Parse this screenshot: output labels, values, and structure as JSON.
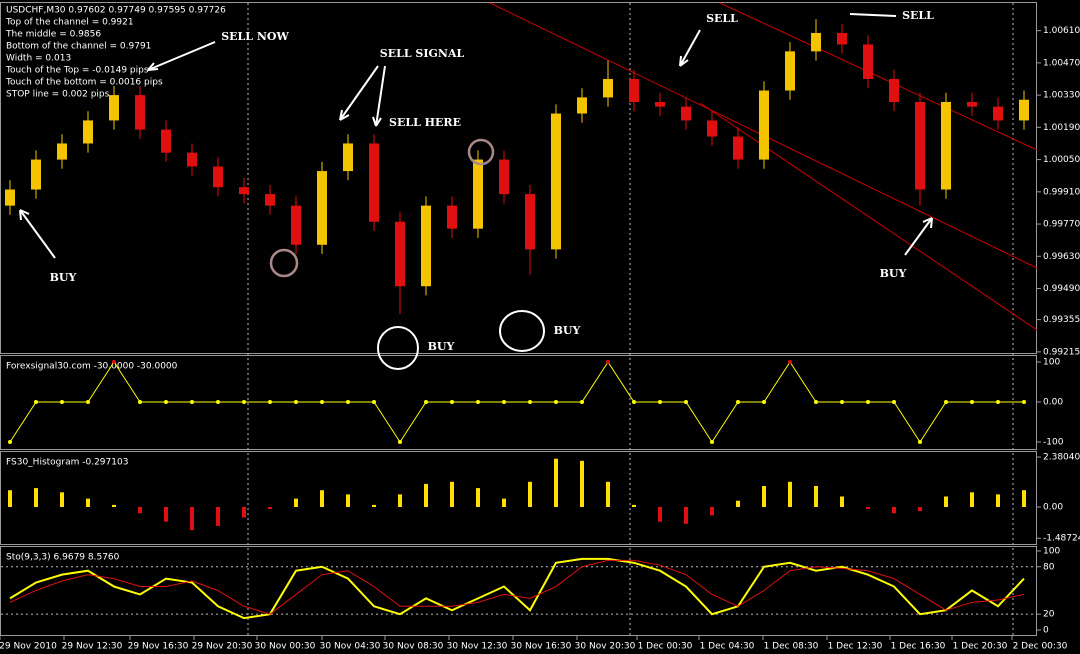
{
  "chart_data": [
    {
      "type": "candlestick",
      "info": [
        "USDCHF,M30  0.97602 0.97749 0.97595 0.97726",
        "Top of the channel = 0.9921",
        "The middle = 0.9856",
        "Bottom of the channel = 0.9791",
        "Width = 0.013",
        "Touch of the Top = -0.0149 pips",
        "Touch of the bottom = 0.0016 pips",
        "STOP line  = 0.002 pips"
      ],
      "annotations": [
        "SELL NOW",
        "SELL SIGNAL",
        "SELL HERE",
        "BUY",
        "BUY",
        "BUY",
        "SELL",
        "SELL",
        "BUY"
      ],
      "open": [
        0.9985,
        0.9992,
        1.0005,
        1.0012,
        1.0022,
        1.0033,
        1.0018,
        1.0008,
        1.0002,
        0.9993,
        0.999,
        0.9985,
        0.9968,
        1.0,
        1.0012,
        0.9978,
        0.995,
        0.9985,
        0.9975,
        1.0005,
        0.999,
        0.9966,
        1.0025,
        1.0032,
        1.004,
        1.003,
        1.0028,
        1.0022,
        1.0015,
        1.0005,
        1.0035,
        1.0052,
        1.006,
        1.0055,
        1.004,
        1.003,
        0.9992,
        1.003,
        1.0028,
        1.0022
      ],
      "high": [
        0.9996,
        1.0009,
        1.0016,
        1.0026,
        1.0037,
        1.0037,
        1.0022,
        1.0012,
        1.0006,
        0.9997,
        0.9994,
        0.9989,
        1.0004,
        1.0016,
        1.0016,
        0.9982,
        0.9989,
        0.9989,
        1.0009,
        1.0009,
        0.9994,
        1.0029,
        1.0036,
        1.0048,
        1.0044,
        1.0034,
        1.0032,
        1.0026,
        1.0019,
        1.0039,
        1.0056,
        1.0066,
        1.0064,
        1.0059,
        1.0044,
        1.0034,
        1.0034,
        1.0034,
        1.0032,
        1.0035
      ],
      "low": [
        0.9981,
        0.9988,
        1.0001,
        1.0008,
        1.0018,
        1.0014,
        1.0004,
        0.9998,
        0.9989,
        0.9986,
        0.9981,
        0.9964,
        0.9964,
        0.9996,
        0.9974,
        0.9938,
        0.9946,
        0.9971,
        0.9971,
        0.9986,
        0.9955,
        0.9962,
        1.0021,
        1.0028,
        1.0026,
        1.0024,
        1.0018,
        1.0011,
        1.0001,
        1.0001,
        1.0031,
        1.0048,
        1.0051,
        1.0036,
        1.0026,
        0.9985,
        0.9988,
        1.0024,
        1.0018,
        1.0018
      ],
      "close": [
        0.9992,
        1.0005,
        1.0012,
        1.0022,
        1.0033,
        1.0018,
        1.0008,
        1.0002,
        0.9993,
        0.999,
        0.9985,
        0.9968,
        1.0,
        1.0012,
        0.9978,
        0.995,
        0.9985,
        0.9975,
        1.0005,
        0.999,
        0.9966,
        1.0025,
        1.0032,
        1.004,
        1.003,
        1.0028,
        1.0022,
        1.0015,
        1.0005,
        1.0035,
        1.0052,
        1.006,
        1.0055,
        1.004,
        1.003,
        0.9992,
        1.003,
        1.0028,
        1.0022,
        1.0031
      ],
      "up_color": "#f5c400",
      "down_color": "#e01010",
      "ylim": [
        0.9921,
        1.0073
      ],
      "yticks": [
        {
          "value": 1.0061,
          "label": "1.00610"
        },
        {
          "value": 1.0047,
          "label": "1.00470"
        },
        {
          "value": 1.0033,
          "label": "1.00330"
        },
        {
          "value": 1.0019,
          "label": "1.00190"
        },
        {
          "value": 1.0005,
          "label": "1.00050"
        },
        {
          "value": 0.9991,
          "label": "0.99910"
        },
        {
          "value": 0.9977,
          "label": "0.99770"
        },
        {
          "value": 0.9963,
          "label": "0.99630"
        },
        {
          "value": 0.9949,
          "label": "0.99490"
        },
        0.99355,
        0.99215
      ],
      "time_axis": [
        "29 Nov 2010",
        "29 Nov 12:30",
        "29 Nov 16:30",
        "29 Nov 20:30",
        "30 Nov 00:30",
        "30 Nov 04:30",
        "30 Nov 08:30",
        "30 Nov 12:30",
        "30 Nov 16:30",
        "30 Nov 20:30",
        "1 Dec 00:30",
        "1 Dec 04:30",
        "1 Dec 08:30",
        "1 Dec 12:30",
        "1 Dec 16:30",
        "1 Dec 20:30",
        "2 Dec 00:30"
      ]
    },
    {
      "type": "line",
      "title": "Forexsignal30.com -30.0000 -30.0000",
      "series": [
        {
          "color": "#ffff00",
          "values": [
            -100,
            0,
            0,
            0,
            100,
            0,
            0,
            0,
            0,
            0,
            0,
            0,
            0,
            0,
            0,
            -100,
            0,
            0,
            0,
            0,
            0,
            0,
            0,
            100,
            0,
            0,
            0,
            -100,
            0,
            0,
            100,
            0,
            0,
            0,
            0,
            -100,
            0,
            0,
            0,
            0
          ]
        }
      ],
      "ylim": [
        -120,
        115
      ],
      "yticks": [
        100,
        {
          "value": 0,
          "label": "0.00"
        },
        -100
      ]
    },
    {
      "type": "bar",
      "title": "FS30_Histogram -0.297103",
      "values": [
        0.8,
        0.9,
        0.7,
        0.4,
        0.1,
        -0.3,
        -0.7,
        -1.1,
        -0.9,
        -0.5,
        -0.1,
        0.4,
        0.8,
        0.6,
        0.1,
        0.6,
        1.1,
        1.2,
        0.9,
        0.4,
        1.2,
        2.3,
        2.2,
        1.2,
        0.1,
        -0.7,
        -0.8,
        -0.4,
        0.3,
        1.0,
        1.2,
        1.0,
        0.5,
        -0.1,
        -0.3,
        -0.2,
        0.5,
        0.7,
        0.6,
        0.8
      ],
      "pos_color": "#ffe000",
      "neg_color": "#e01010",
      "ylim": [
        -1.81,
        2.62
      ],
      "yticks": [
        2.380408,
        {
          "value": 0,
          "label": "0.00"
        },
        {
          "value": -1.48724,
          "label": "-1.487240"
        }
      ]
    },
    {
      "type": "line",
      "title": "Sto(9,3,3) 6.9679 8.5760",
      "series": [
        {
          "color": "#ffff00",
          "values": [
            40,
            60,
            70,
            75,
            55,
            45,
            65,
            60,
            30,
            15,
            20,
            75,
            80,
            65,
            30,
            20,
            40,
            25,
            40,
            55,
            25,
            85,
            90,
            90,
            85,
            75,
            55,
            20,
            30,
            80,
            85,
            75,
            80,
            70,
            55,
            20,
            25,
            50,
            30,
            65
          ]
        },
        {
          "color": "#e01010",
          "values": [
            35,
            50,
            62,
            70,
            65,
            55,
            55,
            62,
            50,
            30,
            20,
            45,
            70,
            75,
            55,
            30,
            30,
            30,
            35,
            45,
            40,
            55,
            80,
            88,
            88,
            82,
            70,
            45,
            30,
            50,
            75,
            80,
            78,
            75,
            65,
            45,
            25,
            35,
            38,
            45
          ]
        }
      ],
      "ylim": [
        -7.6,
        105
      ],
      "yticks": [
        100,
        80,
        20,
        0
      ]
    }
  ]
}
